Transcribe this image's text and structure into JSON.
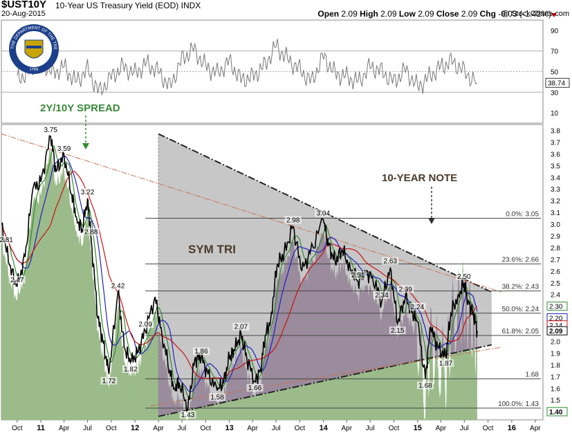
{
  "header": {
    "symbol": "$UST10Y",
    "description": "10-Year US Treasury Yield (EOD)",
    "exchange": "INDX",
    "date": "20-Aug-2015",
    "credit": "@ StockCharts.com",
    "open_label": "Open",
    "open": "2.09",
    "high_label": "High",
    "high": "2.09",
    "low_label": "Low",
    "low": "2.09",
    "close_label": "Close",
    "close": "2.09",
    "chg_label": "Chg",
    "chg": "-0.03 (-1.42%)"
  },
  "colors": {
    "price": "#000000",
    "green_area": "#9bbb8b",
    "triangle_fill": "#b4b4b4",
    "purple_area": "#9a8c9c",
    "ma_short": "#2e8b2e",
    "ma_mid": "#2020c0",
    "ma_long": "#cc1010",
    "fib": "#444444",
    "annotation_green": "#3a8a3a",
    "annotation_dark": "#4a3a2a"
  },
  "logo": {
    "text": "THE DEPARTMENT OF THE TREASURY",
    "year": "1789"
  },
  "chart_data": [
    {
      "type": "line",
      "name": "indicator",
      "ylim": [
        0,
        100
      ],
      "tick_labels": [
        "10",
        "30",
        "50",
        "70",
        "90"
      ],
      "gridlines": [
        30,
        50,
        70
      ],
      "last_value": "38.74",
      "x": [
        "2010-10-01",
        "2010-11-15",
        "2011-01-01",
        "2011-02-15",
        "2011-04-01",
        "2011-05-15",
        "2011-07-01",
        "2011-08-15",
        "2011-10-01",
        "2011-11-15",
        "2012-01-01",
        "2012-02-15",
        "2012-04-01",
        "2012-05-15",
        "2012-07-01",
        "2012-08-15",
        "2012-10-01",
        "2012-11-15",
        "2013-01-01",
        "2013-02-15",
        "2013-04-01",
        "2013-05-15",
        "2013-07-01",
        "2013-08-15",
        "2013-10-01",
        "2013-11-15",
        "2014-01-01",
        "2014-02-15",
        "2014-04-01",
        "2014-05-15",
        "2014-07-01",
        "2014-08-15",
        "2014-10-01",
        "2014-11-15",
        "2015-01-01",
        "2015-02-15",
        "2015-04-01",
        "2015-05-15",
        "2015-07-01",
        "2015-08-20"
      ],
      "values": [
        42,
        50,
        62,
        48,
        55,
        40,
        52,
        30,
        45,
        55,
        48,
        58,
        50,
        35,
        62,
        72,
        55,
        48,
        60,
        42,
        45,
        55,
        75,
        62,
        52,
        40,
        65,
        48,
        45,
        40,
        55,
        50,
        40,
        52,
        35,
        45,
        55,
        60,
        50,
        38.74
      ]
    },
    {
      "type": "line",
      "name": "price",
      "ylim": [
        1.33,
        3.85
      ],
      "tick_labels": [
        "1.4",
        "1.5",
        "1.6",
        "1.7",
        "1.8",
        "1.9",
        "2.0",
        "2.1",
        "2.2",
        "2.3",
        "2.4",
        "2.5",
        "2.6",
        "2.7",
        "2.8",
        "2.9",
        "3.0",
        "3.1",
        "3.2",
        "3.3",
        "3.4",
        "3.5",
        "3.6",
        "3.7",
        "3.8"
      ],
      "x_tick_labels": [
        {
          "label": "Oct",
          "date": "2010-10-01",
          "year": false
        },
        {
          "label": "11",
          "date": "2011-01-01",
          "year": true
        },
        {
          "label": "Apr",
          "date": "2011-04-01",
          "year": false
        },
        {
          "label": "Jul",
          "date": "2011-07-01",
          "year": false
        },
        {
          "label": "Oct",
          "date": "2011-10-01",
          "year": false
        },
        {
          "label": "12",
          "date": "2012-01-01",
          "year": true
        },
        {
          "label": "Apr",
          "date": "2012-04-01",
          "year": false
        },
        {
          "label": "Jul",
          "date": "2012-07-01",
          "year": false
        },
        {
          "label": "Oct",
          "date": "2012-10-01",
          "year": false
        },
        {
          "label": "13",
          "date": "2013-01-01",
          "year": true
        },
        {
          "label": "Apr",
          "date": "2013-04-01",
          "year": false
        },
        {
          "label": "Jul",
          "date": "2013-07-01",
          "year": false
        },
        {
          "label": "Oct",
          "date": "2013-10-01",
          "year": false
        },
        {
          "label": "14",
          "date": "2014-01-01",
          "year": true
        },
        {
          "label": "Apr",
          "date": "2014-04-01",
          "year": false
        },
        {
          "label": "Jul",
          "date": "2014-07-01",
          "year": false
        },
        {
          "label": "Oct",
          "date": "2014-10-01",
          "year": false
        },
        {
          "label": "15",
          "date": "2015-01-01",
          "year": true
        },
        {
          "label": "Apr",
          "date": "2015-04-01",
          "year": false
        },
        {
          "label": "Jul",
          "date": "2015-07-01",
          "year": false
        },
        {
          "label": "Oct",
          "date": "2015-10-01",
          "year": false
        },
        {
          "label": "16",
          "date": "2016-01-01",
          "year": true
        },
        {
          "label": "Apr",
          "date": "2016-04-01",
          "year": false
        }
      ],
      "x": [
        "2010-08-01",
        "2010-09-01",
        "2010-10-01",
        "2010-11-01",
        "2010-12-01",
        "2011-01-01",
        "2011-02-08",
        "2011-03-01",
        "2011-04-01",
        "2011-05-01",
        "2011-05-20",
        "2011-06-10",
        "2011-07-01",
        "2011-07-15",
        "2011-08-10",
        "2011-09-01",
        "2011-09-22",
        "2011-10-27",
        "2011-11-20",
        "2011-12-15",
        "2012-01-10",
        "2012-02-10",
        "2012-03-19",
        "2012-04-15",
        "2012-05-15",
        "2012-06-01",
        "2012-06-20",
        "2012-07-24",
        "2012-08-20",
        "2012-09-14",
        "2012-10-10",
        "2012-11-15",
        "2012-12-10",
        "2013-01-01",
        "2013-01-20",
        "2013-02-15",
        "2013-03-10",
        "2013-04-10",
        "2013-05-02",
        "2013-05-20",
        "2013-06-10",
        "2013-07-05",
        "2013-08-01",
        "2013-09-05",
        "2013-10-09",
        "2013-11-10",
        "2013-12-31",
        "2014-01-20",
        "2014-02-15",
        "2014-03-15",
        "2014-04-15",
        "2014-05-15",
        "2014-06-10",
        "2014-07-10",
        "2014-08-15",
        "2014-09-17",
        "2014-10-15",
        "2014-11-15",
        "2014-12-10",
        "2014-12-31",
        "2015-01-31",
        "2015-02-20",
        "2015-03-20",
        "2015-04-20",
        "2015-05-10",
        "2015-06-10",
        "2015-06-30",
        "2015-07-15",
        "2015-08-05",
        "2015-08-20"
      ],
      "series": [
        {
          "values": [
            3.0,
            2.65,
            2.47,
            2.72,
            3.3,
            3.36,
            3.75,
            3.45,
            3.59,
            3.25,
            3.05,
            2.95,
            3.22,
            2.88,
            2.2,
            1.98,
            1.72,
            2.42,
            1.95,
            1.82,
            1.9,
            2.09,
            2.38,
            2.05,
            1.75,
            1.6,
            1.65,
            1.43,
            1.85,
            1.86,
            1.72,
            1.58,
            1.65,
            1.86,
            1.92,
            2.07,
            1.85,
            1.66,
            1.76,
            2.05,
            2.18,
            2.65,
            2.75,
            2.98,
            2.6,
            2.75,
            3.04,
            2.82,
            2.68,
            2.78,
            2.62,
            2.51,
            2.6,
            2.55,
            2.34,
            2.63,
            2.15,
            2.39,
            2.24,
            2.17,
            1.68,
            2.12,
            1.95,
            1.87,
            2.24,
            2.4,
            2.5,
            2.35,
            2.24,
            2.09
          ]
        }
      ],
      "data_labels": [
        {
          "text": "3.75",
          "x": "2011-02-08",
          "y": 3.75
        },
        {
          "text": "3.59",
          "x": "2011-04-01",
          "y": 3.59
        },
        {
          "text": "3.22",
          "x": "2011-07-01",
          "y": 3.22
        },
        {
          "text": "2.88",
          "x": "2011-07-15",
          "y": 2.88
        },
        {
          "text": "2.81",
          "x": "2010-08-20",
          "y": 2.81
        },
        {
          "text": "2.47",
          "x": "2010-10-01",
          "y": 2.47
        },
        {
          "text": "2.42",
          "x": "2011-10-27",
          "y": 2.42
        },
        {
          "text": "1.72",
          "x": "2011-09-22",
          "y": 1.72
        },
        {
          "text": "1.82",
          "x": "2011-12-15",
          "y": 1.82
        },
        {
          "text": "2.09",
          "x": "2012-02-10",
          "y": 2.09
        },
        {
          "text": "1.43",
          "x": "2012-07-24",
          "y": 1.43
        },
        {
          "text": "1.86",
          "x": "2012-09-14",
          "y": 1.86
        },
        {
          "text": "1.58",
          "x": "2012-11-15",
          "y": 1.58
        },
        {
          "text": "2.07",
          "x": "2013-02-15",
          "y": 2.07
        },
        {
          "text": "1.66",
          "x": "2013-04-10",
          "y": 1.66
        },
        {
          "text": "2.98",
          "x": "2013-09-05",
          "y": 2.98
        },
        {
          "text": "3.04",
          "x": "2013-12-31",
          "y": 3.04
        },
        {
          "text": "2.51",
          "x": "2014-05-15",
          "y": 2.51
        },
        {
          "text": "2.63",
          "x": "2014-09-17",
          "y": 2.63
        },
        {
          "text": "2.34",
          "x": "2014-08-15",
          "y": 2.34
        },
        {
          "text": "2.39",
          "x": "2014-11-15",
          "y": 2.39
        },
        {
          "text": "2.15",
          "x": "2014-10-15",
          "y": 2.15
        },
        {
          "text": "2.24",
          "x": "2014-12-31",
          "y": 2.24
        },
        {
          "text": "1.68",
          "x": "2015-01-31",
          "y": 1.68
        },
        {
          "text": "1.87",
          "x": "2015-04-20",
          "y": 1.87
        },
        {
          "text": "2.50",
          "x": "2015-06-30",
          "y": 2.5
        }
      ],
      "fib_levels": [
        {
          "label": "0.0%: 3.05",
          "value": 3.05
        },
        {
          "label": "23.6%: 2.66",
          "value": 2.66
        },
        {
          "label": "38.2%: 2.43",
          "value": 2.43
        },
        {
          "label": "50.0%: 2.24",
          "value": 2.24
        },
        {
          "label": "61.8%: 2.05",
          "value": 2.05
        },
        {
          "label": "1.68",
          "value": 1.68
        },
        {
          "label": "100.0%: 1.43",
          "value": 1.43
        }
      ],
      "fib_start": "2012-02-10",
      "triangle": {
        "top": {
          "x": "2012-04-01",
          "y": 3.77
        },
        "bottom": {
          "x": "2012-04-01",
          "y": 1.36
        },
        "apex_top": {
          "x": "2015-10-15",
          "y": 2.42
        },
        "apex_bottom": {
          "x": "2015-10-15",
          "y": 1.97
        }
      },
      "right_axis_labels": [
        {
          "text": "2.30",
          "value": 2.3
        },
        {
          "text": "2.20",
          "value": 2.2
        },
        {
          "text": "2.14",
          "value": 2.14
        },
        {
          "text": "2.09",
          "value": 2.09
        },
        {
          "text": "1.40",
          "value": 1.4
        }
      ],
      "annotations": [
        {
          "text": "2Y/10Y SPREAD",
          "kind": "green"
        },
        {
          "text": "10-YEAR NOTE",
          "kind": "dark"
        },
        {
          "text": "SYM TRI",
          "kind": "dark"
        }
      ]
    }
  ]
}
